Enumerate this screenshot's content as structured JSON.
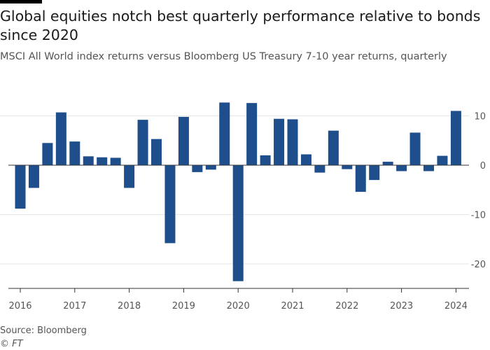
{
  "header": {
    "title": "Global equities notch best quarterly performance relative to bonds since 2020",
    "subtitle": "MSCI All World index returns versus Bloomberg US Treasury 7-10 year returns, quarterly"
  },
  "footer": {
    "source": "Source: Bloomberg",
    "copyright": "© FT"
  },
  "colors": {
    "bar": "#1f4e8c",
    "grid": "#e6e6e6",
    "zero_line": "#333333",
    "text": "#555555"
  },
  "chart_data": {
    "type": "bar",
    "title": "Global equities notch best quarterly performance relative to bonds since 2020",
    "subtitle": "MSCI All World index returns versus Bloomberg US Treasury 7-10 year returns, quarterly",
    "xlabel": "",
    "ylabel": "",
    "ylim": [
      -25,
      15
    ],
    "y_ticks": [
      10,
      0,
      -10,
      -20
    ],
    "y_tick_labels": [
      "10",
      "0",
      "-10",
      "-20"
    ],
    "x_tick_labels": [
      "2016",
      "2017",
      "2018",
      "2019",
      "2020",
      "2021",
      "2022",
      "2023",
      "2024"
    ],
    "categories": [
      "2016 Q1",
      "2016 Q2",
      "2016 Q3",
      "2016 Q4",
      "2017 Q1",
      "2017 Q2",
      "2017 Q3",
      "2017 Q4",
      "2018 Q1",
      "2018 Q2",
      "2018 Q3",
      "2018 Q4",
      "2019 Q1",
      "2019 Q2",
      "2019 Q3",
      "2019 Q4",
      "2020 Q1",
      "2020 Q2",
      "2020 Q3",
      "2020 Q4",
      "2021 Q1",
      "2021 Q2",
      "2021 Q3",
      "2021 Q4",
      "2022 Q1",
      "2022 Q2",
      "2022 Q3",
      "2022 Q4",
      "2023 Q1",
      "2023 Q2",
      "2023 Q3",
      "2023 Q4",
      "2024 Q1"
    ],
    "values": [
      -8.8,
      -4.6,
      4.5,
      10.7,
      4.8,
      1.8,
      1.6,
      1.5,
      -4.6,
      9.2,
      5.3,
      -15.8,
      9.8,
      -1.4,
      -0.9,
      12.7,
      -23.5,
      12.6,
      2.0,
      9.4,
      9.3,
      2.2,
      -1.5,
      7.0,
      -0.8,
      -5.4,
      -3.0,
      0.7,
      -1.2,
      6.6,
      -1.2,
      1.9,
      11.0
    ],
    "grid": true,
    "legend": "none"
  }
}
